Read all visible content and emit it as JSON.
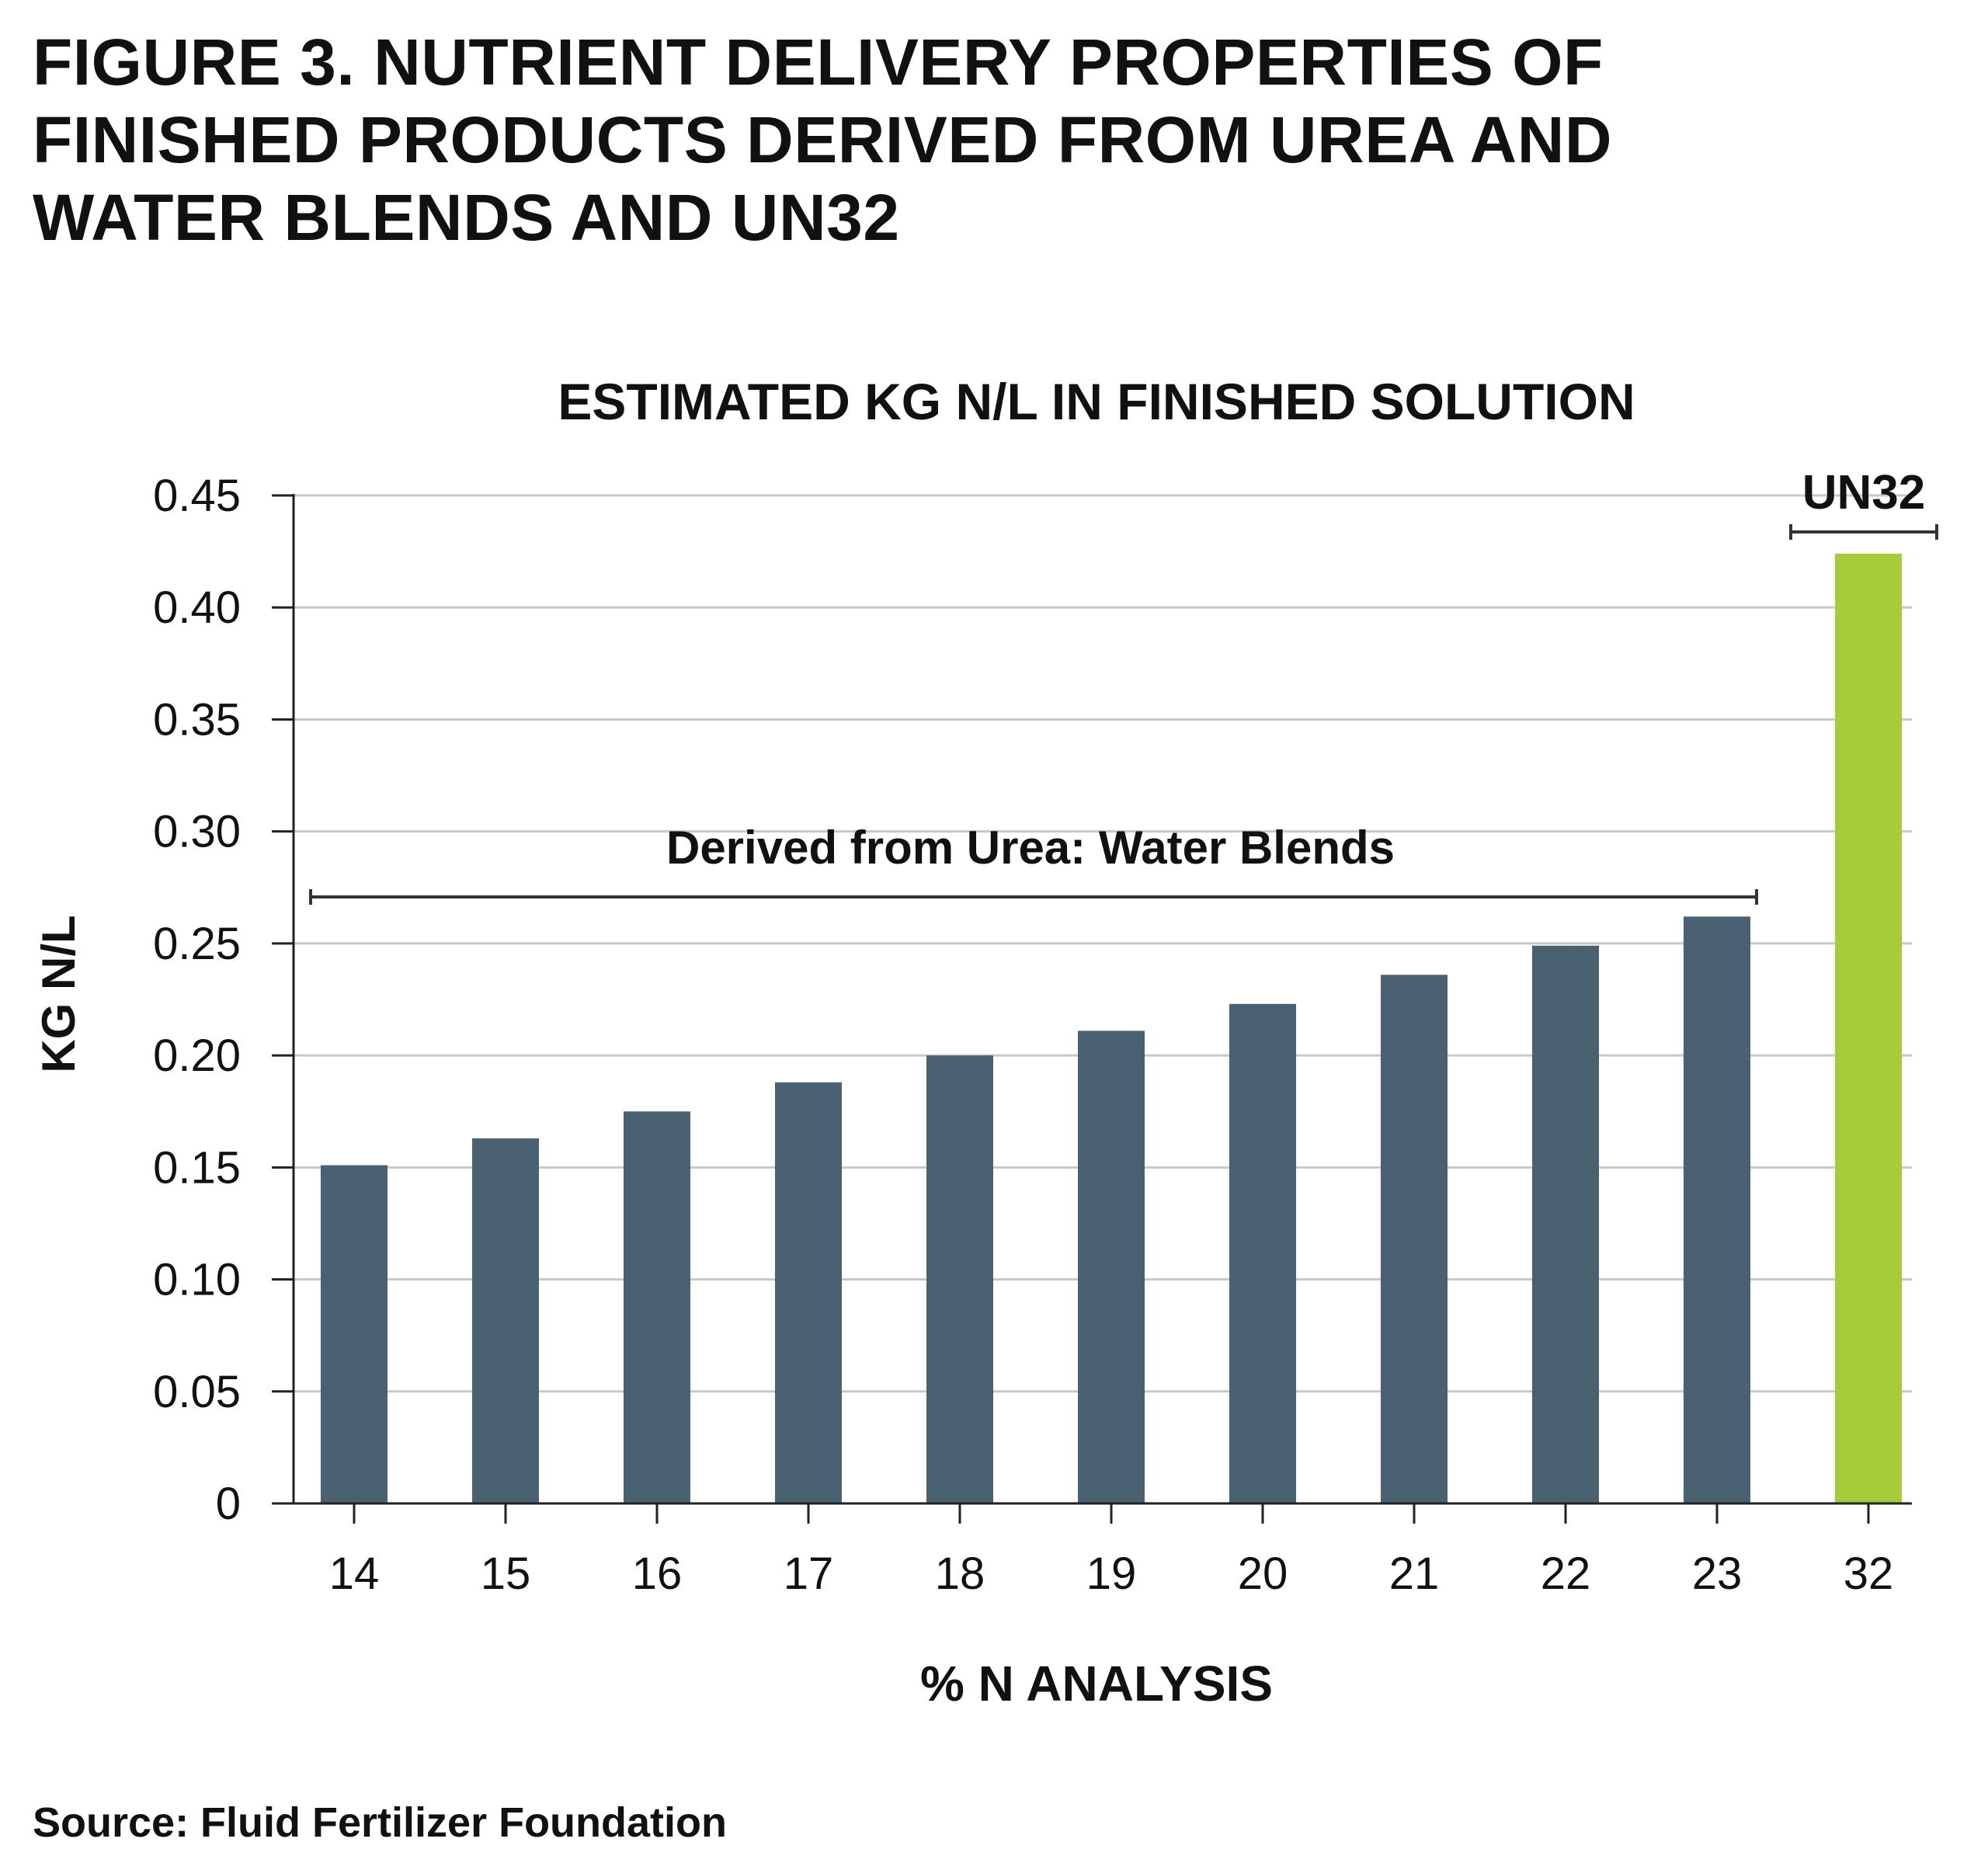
{
  "figure_title_lines": [
    "FIGURE 3. NUTRIENT DELIVERY PROPERTIES OF",
    "FINISHED PRODUCTS DERIVED FROM UREA AND",
    "WATER BLENDS AND UN32"
  ],
  "source": "Source: Fluid Fertilizer Foundation",
  "chart_data": {
    "type": "bar",
    "title": "ESTIMATED KG N/L IN FINISHED SOLUTION",
    "xlabel": "% N ANALYSIS",
    "ylabel": "KG N/L",
    "categories": [
      "14",
      "15",
      "16",
      "17",
      "18",
      "19",
      "20",
      "21",
      "22",
      "23",
      "32"
    ],
    "values": [
      0.151,
      0.163,
      0.175,
      0.188,
      0.2,
      0.211,
      0.223,
      0.236,
      0.249,
      0.262,
      0.424
    ],
    "bar_colors": [
      "#4a6172",
      "#4a6172",
      "#4a6172",
      "#4a6172",
      "#4a6172",
      "#4a6172",
      "#4a6172",
      "#4a6172",
      "#4a6172",
      "#4a6172",
      "#a6cc3a"
    ],
    "ylim": [
      0,
      0.45
    ],
    "yticks": [
      "0",
      "0.05",
      "0.10",
      "0.15",
      "0.20",
      "0.25",
      "0.30",
      "0.35",
      "0.40",
      "0.45"
    ],
    "grid": true,
    "gridline_color": "#c8c8c8",
    "annotations": [
      {
        "text": "Derived from Urea: Water Blends",
        "from_category": "14",
        "to_category": "23"
      },
      {
        "text": "UN32",
        "from_category": "32",
        "to_category": "32"
      }
    ]
  }
}
